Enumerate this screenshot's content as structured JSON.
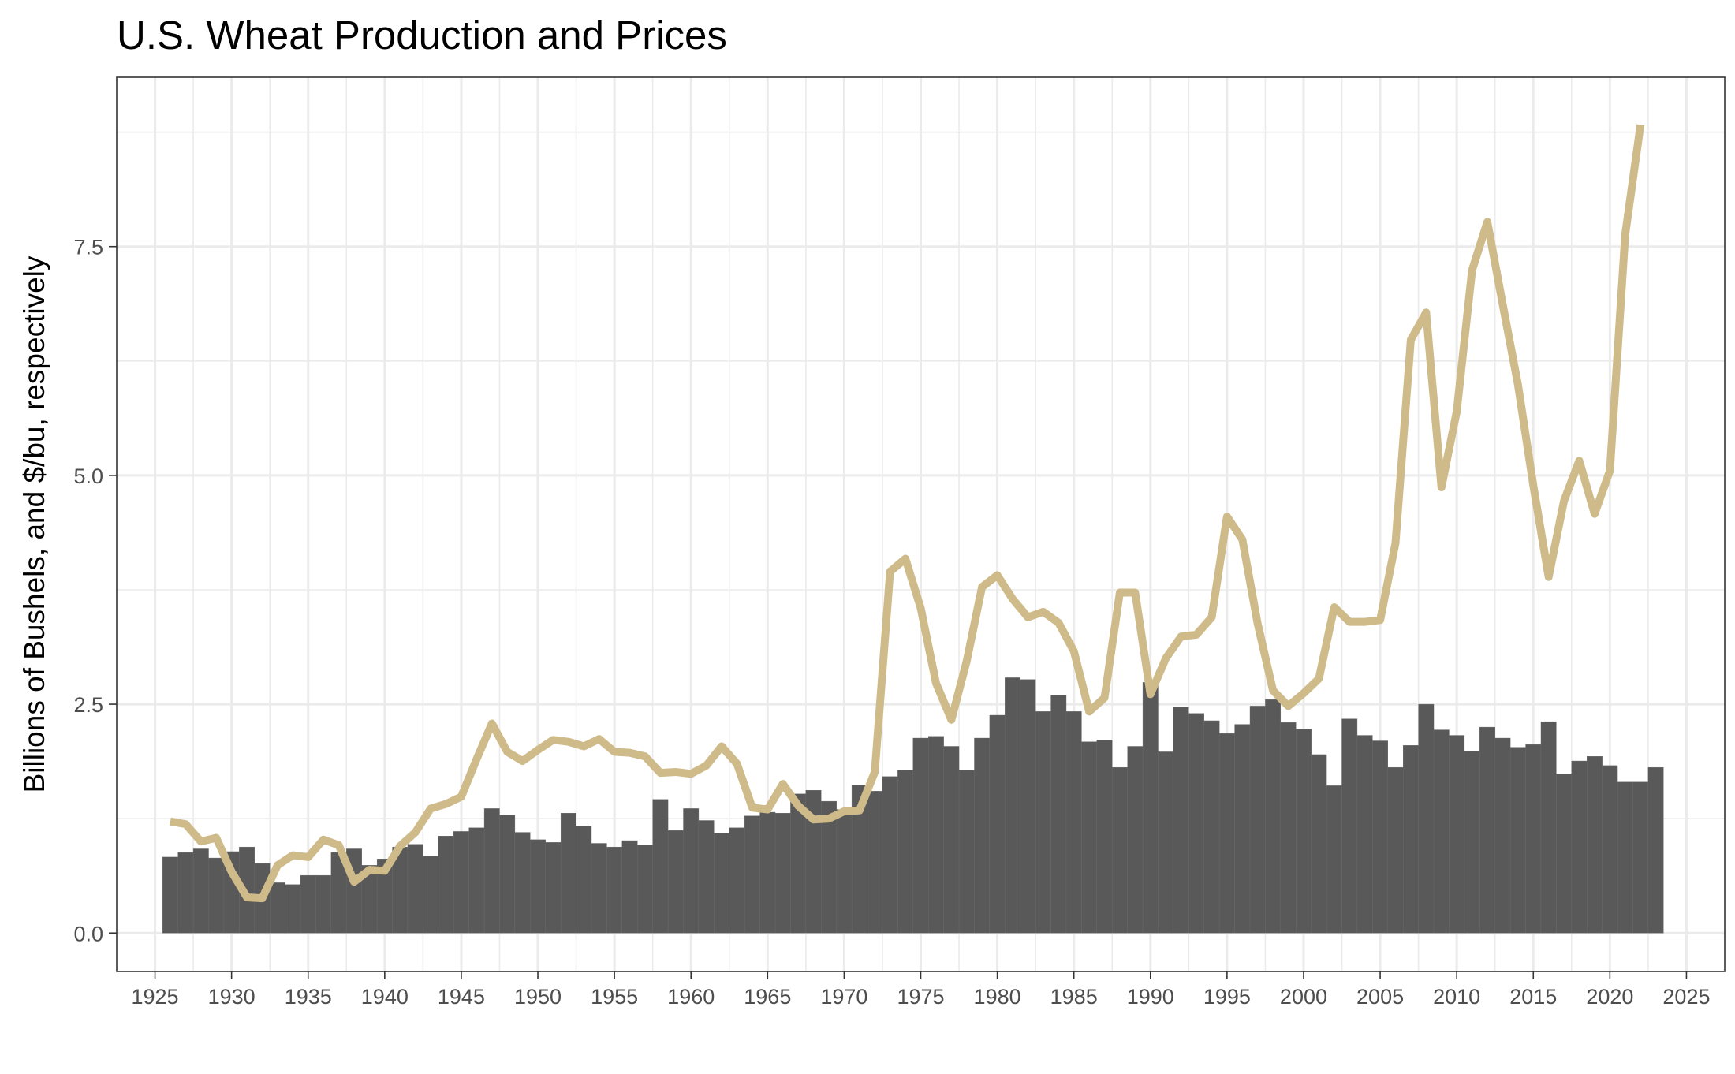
{
  "chart_data": {
    "type": "bar",
    "title": "U.S. Wheat Production and Prices",
    "xlabel": "",
    "ylabel": "Billions of Bushels, and $/bu, respectively",
    "xlim": [
      1922.5,
      2027.5
    ],
    "ylim": [
      -0.42,
      9.35
    ],
    "x_ticks": [
      "1925",
      "1930",
      "1935",
      "1940",
      "1945",
      "1950",
      "1955",
      "1960",
      "1965",
      "1970",
      "1975",
      "1980",
      "1985",
      "1990",
      "1995",
      "2000",
      "2005",
      "2010",
      "2015",
      "2020",
      "2025"
    ],
    "y_ticks": [
      "0.0",
      "2.5",
      "5.0",
      "7.5"
    ],
    "grid": true,
    "colors": {
      "bars": "#595959",
      "price_line": "#cfbb8a",
      "grid": "#ebebeb",
      "border": "#333333"
    },
    "production": {
      "years": [
        1926,
        1927,
        1928,
        1929,
        1930,
        1931,
        1932,
        1933,
        1934,
        1935,
        1936,
        1937,
        1938,
        1939,
        1940,
        1941,
        1942,
        1943,
        1944,
        1945,
        1946,
        1947,
        1948,
        1949,
        1950,
        1951,
        1952,
        1953,
        1954,
        1955,
        1956,
        1957,
        1958,
        1959,
        1960,
        1961,
        1962,
        1963,
        1964,
        1965,
        1966,
        1967,
        1968,
        1969,
        1970,
        1971,
        1972,
        1973,
        1974,
        1975,
        1976,
        1977,
        1978,
        1979,
        1980,
        1981,
        1982,
        1983,
        1984,
        1985,
        1986,
        1987,
        1988,
        1989,
        1990,
        1991,
        1992,
        1993,
        1994,
        1995,
        1996,
        1997,
        1998,
        1999,
        2000,
        2001,
        2002,
        2003,
        2004,
        2005,
        2006,
        2007,
        2008,
        2009,
        2010,
        2011,
        2012,
        2013,
        2014,
        2015,
        2016,
        2017,
        2018,
        2019,
        2020,
        2021,
        2022,
        2023
      ],
      "values": [
        0.83,
        0.88,
        0.92,
        0.82,
        0.89,
        0.94,
        0.76,
        0.55,
        0.53,
        0.63,
        0.63,
        0.88,
        0.92,
        0.74,
        0.81,
        0.94,
        0.97,
        0.84,
        1.06,
        1.11,
        1.15,
        1.36,
        1.29,
        1.1,
        1.02,
        0.99,
        1.31,
        1.17,
        0.98,
        0.94,
        1.01,
        0.96,
        1.46,
        1.12,
        1.36,
        1.23,
        1.09,
        1.15,
        1.28,
        1.32,
        1.31,
        1.52,
        1.56,
        1.44,
        1.35,
        1.62,
        1.55,
        1.71,
        1.78,
        2.13,
        2.15,
        2.04,
        1.78,
        2.13,
        2.38,
        2.79,
        2.77,
        2.42,
        2.6,
        2.42,
        2.09,
        2.11,
        1.81,
        2.04,
        2.74,
        1.98,
        2.47,
        2.4,
        2.32,
        2.18,
        2.28,
        2.48,
        2.55,
        2.3,
        2.23,
        1.95,
        1.61,
        2.34,
        2.16,
        2.1,
        1.81,
        2.05,
        2.5,
        2.22,
        2.16,
        1.99,
        2.25,
        2.13,
        2.03,
        2.06,
        2.31,
        1.74,
        1.88,
        1.93,
        1.83,
        1.65,
        1.65,
        1.81
      ]
    },
    "price": {
      "years": [
        1926,
        1927,
        1928,
        1929,
        1930,
        1931,
        1932,
        1933,
        1934,
        1935,
        1936,
        1937,
        1938,
        1939,
        1940,
        1941,
        1942,
        1943,
        1944,
        1945,
        1946,
        1947,
        1948,
        1949,
        1950,
        1951,
        1952,
        1953,
        1954,
        1955,
        1956,
        1957,
        1958,
        1959,
        1960,
        1961,
        1962,
        1963,
        1964,
        1965,
        1966,
        1967,
        1968,
        1969,
        1970,
        1971,
        1972,
        1973,
        1974,
        1975,
        1976,
        1977,
        1978,
        1979,
        1980,
        1981,
        1982,
        1983,
        1984,
        1985,
        1986,
        1987,
        1988,
        1989,
        1990,
        1991,
        1992,
        1993,
        1994,
        1995,
        1996,
        1997,
        1998,
        1999,
        2000,
        2001,
        2002,
        2003,
        2004,
        2005,
        2006,
        2007,
        2008,
        2009,
        2010,
        2011,
        2012,
        2013,
        2014,
        2015,
        2016,
        2017,
        2018,
        2019,
        2020,
        2021,
        2022
      ],
      "values": [
        1.22,
        1.19,
        1.0,
        1.04,
        0.67,
        0.39,
        0.38,
        0.74,
        0.85,
        0.83,
        1.02,
        0.96,
        0.56,
        0.69,
        0.68,
        0.95,
        1.1,
        1.36,
        1.41,
        1.49,
        1.9,
        2.29,
        1.98,
        1.88,
        2.0,
        2.11,
        2.09,
        2.04,
        2.12,
        1.98,
        1.97,
        1.93,
        1.75,
        1.76,
        1.74,
        1.83,
        2.04,
        1.85,
        1.37,
        1.35,
        1.63,
        1.39,
        1.24,
        1.25,
        1.33,
        1.34,
        1.76,
        3.95,
        4.09,
        3.55,
        2.73,
        2.33,
        2.97,
        3.78,
        3.91,
        3.65,
        3.45,
        3.51,
        3.39,
        3.08,
        2.42,
        2.57,
        3.72,
        3.72,
        2.61,
        3.0,
        3.24,
        3.26,
        3.45,
        4.55,
        4.3,
        3.38,
        2.65,
        2.48,
        2.62,
        2.78,
        3.56,
        3.4,
        3.4,
        3.42,
        4.26,
        6.48,
        6.78,
        4.87,
        5.7,
        7.24,
        7.77,
        6.87,
        5.99,
        4.89,
        3.89,
        4.72,
        5.16,
        4.58,
        5.05,
        7.63,
        8.83
      ]
    }
  }
}
